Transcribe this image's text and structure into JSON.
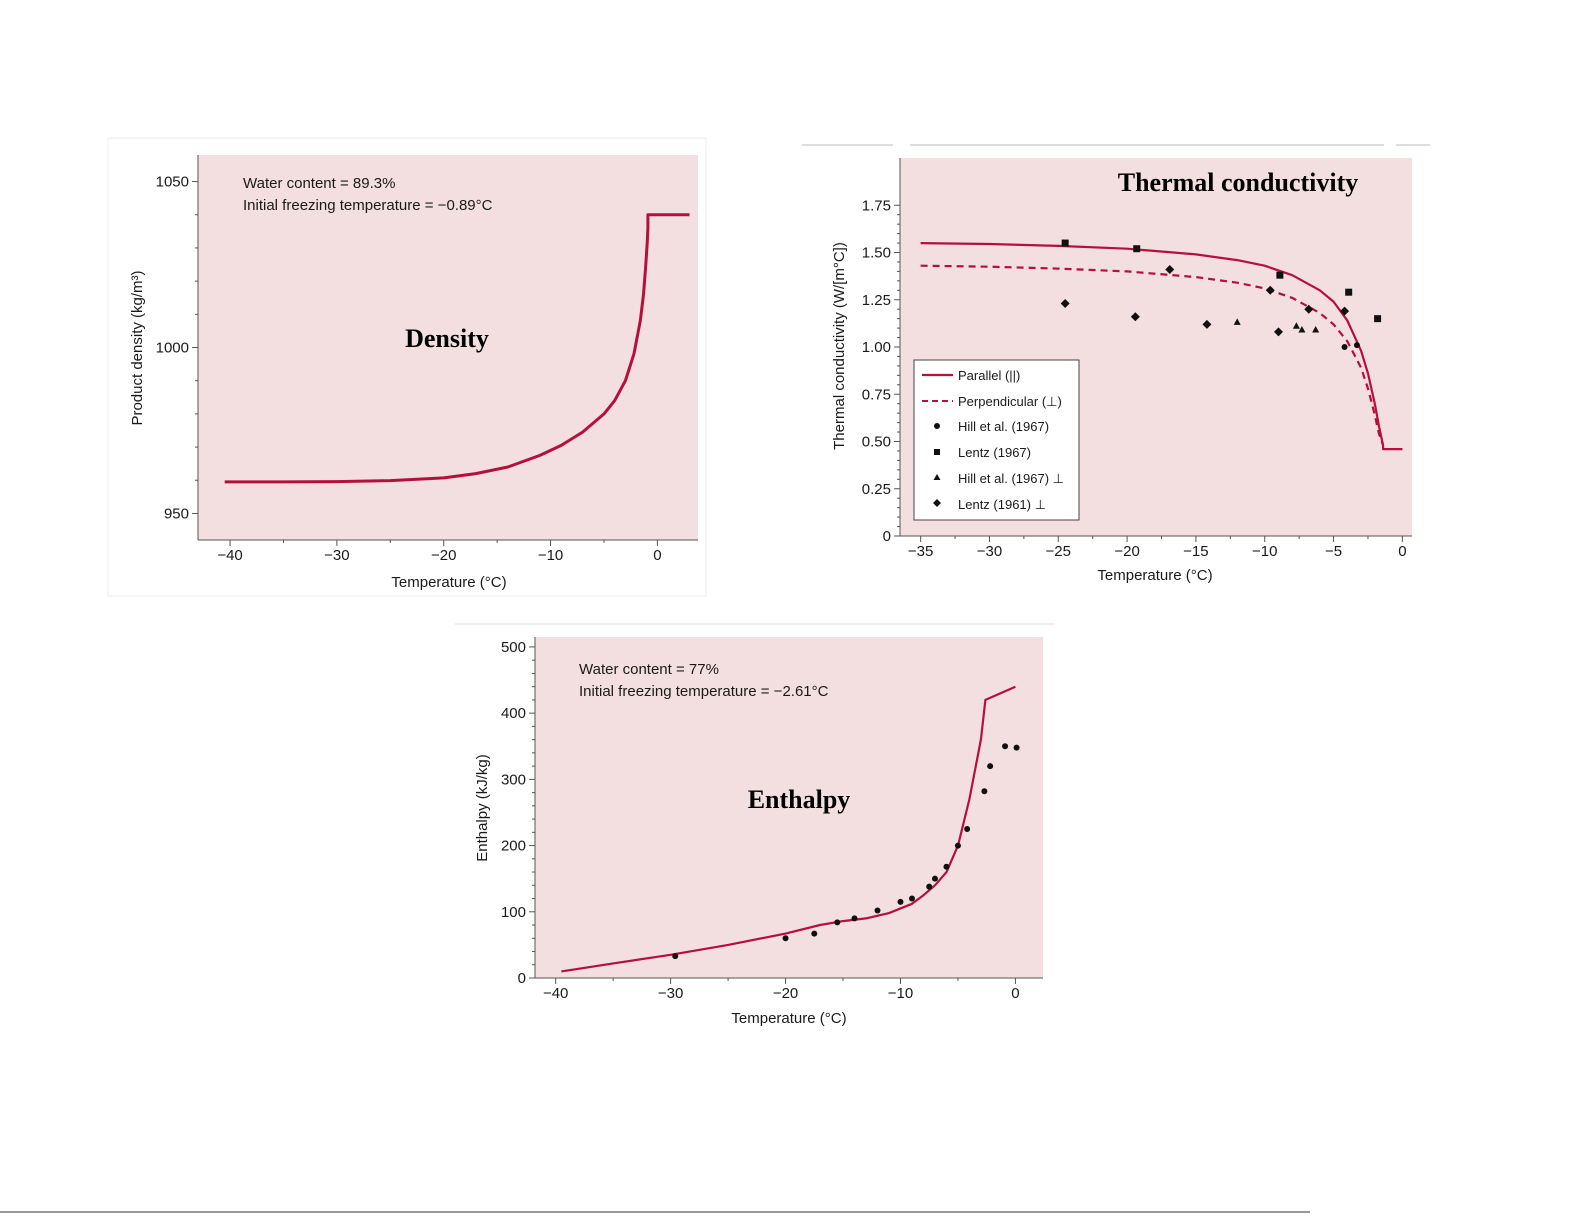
{
  "colors": {
    "plot_bg": "#f3dfe0",
    "curve": "#b5103c",
    "axis": "#555555",
    "marker": "#111111"
  },
  "chart_data": [
    {
      "id": "density",
      "type": "line",
      "overlay_title": "Density",
      "annotations": [
        "Water content = 89.3%",
        "Initial freezing temperature = −0.89°C"
      ],
      "xlabel": "Temperature (°C)",
      "ylabel": "Product density (kg/m³)",
      "xlim": [
        -43,
        3.8
      ],
      "ylim": [
        942,
        1058
      ],
      "xticks": [
        -40,
        -30,
        -20,
        -10,
        0
      ],
      "xtick_labels": [
        "−40",
        "−30",
        "−20",
        "−10",
        "0"
      ],
      "yticks": [
        950,
        1000,
        1050
      ],
      "ytick_labels": [
        "950",
        "1000",
        "1050"
      ],
      "series": [
        {
          "style": "solid",
          "x": [
            -40.5,
            -35,
            -30,
            -25,
            -20,
            -17,
            -14,
            -11,
            -9,
            -7,
            -5,
            -4,
            -3,
            -2.2,
            -1.6,
            -1.3,
            -1.1,
            -0.95,
            -0.89,
            -0.89,
            3
          ],
          "y": [
            959.5,
            959.5,
            959.6,
            959.9,
            960.7,
            962.0,
            964.0,
            967.5,
            970.5,
            974.5,
            980,
            984,
            990,
            998,
            1008,
            1016,
            1024,
            1032,
            1036,
            1040,
            1040
          ]
        }
      ]
    },
    {
      "id": "thermal_conductivity",
      "type": "line",
      "overlay_title": "Thermal conductivity",
      "xlabel": "Temperature (°C)",
      "ylabel": "Thermal conductivity (W/[m°C])",
      "xlim": [
        -36.5,
        0.7
      ],
      "ylim": [
        0,
        2.0
      ],
      "xticks": [
        -35,
        -30,
        -25,
        -20,
        -15,
        -10,
        -5,
        0
      ],
      "xtick_labels": [
        "−35",
        "−30",
        "−25",
        "−20",
        "−15",
        "−10",
        "−5",
        "0"
      ],
      "yticks": [
        0,
        0.25,
        0.5,
        0.75,
        1.0,
        1.25,
        1.5,
        1.75
      ],
      "ytick_labels": [
        "0",
        "0.25",
        "0.50",
        "0.75",
        "1.00",
        "1.25",
        "1.50",
        "1.75"
      ],
      "legend_position": "bottom-left",
      "series": [
        {
          "name": "Parallel (||)",
          "style": "solid",
          "x": [
            -35,
            -30,
            -25,
            -20,
            -15,
            -12,
            -10,
            -8,
            -6,
            -5,
            -4,
            -3,
            -2.5,
            -2,
            -1.7,
            -1.4,
            -1.4,
            0
          ],
          "y": [
            1.55,
            1.545,
            1.535,
            1.52,
            1.49,
            1.46,
            1.43,
            1.38,
            1.3,
            1.24,
            1.14,
            0.98,
            0.86,
            0.7,
            0.58,
            0.48,
            0.46,
            0.46
          ]
        },
        {
          "name": "Perpendicular (⊥)",
          "style": "dashed",
          "x": [
            -35,
            -30,
            -25,
            -20,
            -15,
            -12,
            -10,
            -8,
            -6,
            -5,
            -4,
            -3,
            -2.5,
            -2,
            -1.7,
            -1.4
          ],
          "y": [
            1.43,
            1.425,
            1.415,
            1.4,
            1.37,
            1.34,
            1.31,
            1.26,
            1.18,
            1.12,
            1.03,
            0.89,
            0.78,
            0.64,
            0.54,
            0.48
          ]
        },
        {
          "name": "Hill et al. (1967)",
          "marker": "circle",
          "x": [
            -4.2,
            -3.3
          ],
          "y": [
            1.0,
            1.01
          ]
        },
        {
          "name": "Lentz (1967)",
          "marker": "square",
          "x": [
            -24.5,
            -19.3,
            -8.9,
            -3.9,
            -1.8
          ],
          "y": [
            1.55,
            1.52,
            1.38,
            1.29,
            1.15
          ]
        },
        {
          "name": "Hill et al. (1967) ⊥",
          "marker": "triangle",
          "x": [
            -12.0,
            -7.7,
            -7.3,
            -6.3
          ],
          "y": [
            1.13,
            1.11,
            1.09,
            1.09
          ]
        },
        {
          "name": "Lentz (1961) ⊥",
          "marker": "diamond",
          "x": [
            -24.5,
            -19.4,
            -16.9,
            -14.2,
            -9.6,
            -9.0,
            -6.8,
            -4.2
          ],
          "y": [
            1.23,
            1.16,
            1.41,
            1.12,
            1.3,
            1.08,
            1.2,
            1.19
          ]
        }
      ]
    },
    {
      "id": "enthalpy",
      "type": "line",
      "overlay_title": "Enthalpy",
      "annotations": [
        "Water content = 77%",
        "Initial freezing temperature = −2.61°C"
      ],
      "xlabel": "Temperature (°C)",
      "ylabel": "Enthalpy (kJ/kg)",
      "xlim": [
        -41.8,
        2.4
      ],
      "ylim": [
        0,
        515
      ],
      "xticks": [
        -40,
        -30,
        -20,
        -10,
        0
      ],
      "xtick_labels": [
        "−40",
        "−30",
        "−20",
        "−10",
        "0"
      ],
      "yticks": [
        0,
        100,
        200,
        300,
        400,
        500
      ],
      "ytick_labels": [
        "0",
        "100",
        "200",
        "300",
        "400",
        "500"
      ],
      "series": [
        {
          "style": "solid",
          "x": [
            -39.5,
            -35,
            -30,
            -25,
            -20,
            -17,
            -15,
            -13,
            -11,
            -9,
            -8,
            -7,
            -6,
            -5,
            -4,
            -3,
            -2.61,
            0
          ],
          "y": [
            10,
            22,
            35,
            50,
            67,
            80,
            86,
            90,
            98,
            112,
            125,
            140,
            160,
            200,
            270,
            360,
            420,
            440
          ]
        },
        {
          "marker": "circle",
          "x": [
            -29.6,
            -20.0,
            -17.5,
            -15.5,
            -14.0,
            -12.0,
            -10.0,
            -9.0,
            -7.5,
            -7.0,
            -6.0,
            -5.0,
            -4.2,
            -2.7,
            -2.2,
            -0.9,
            0.1
          ],
          "y": [
            33,
            60,
            67,
            84,
            90,
            102,
            115,
            120,
            138,
            150,
            168,
            200,
            225,
            282,
            320,
            350,
            348
          ]
        }
      ]
    }
  ]
}
